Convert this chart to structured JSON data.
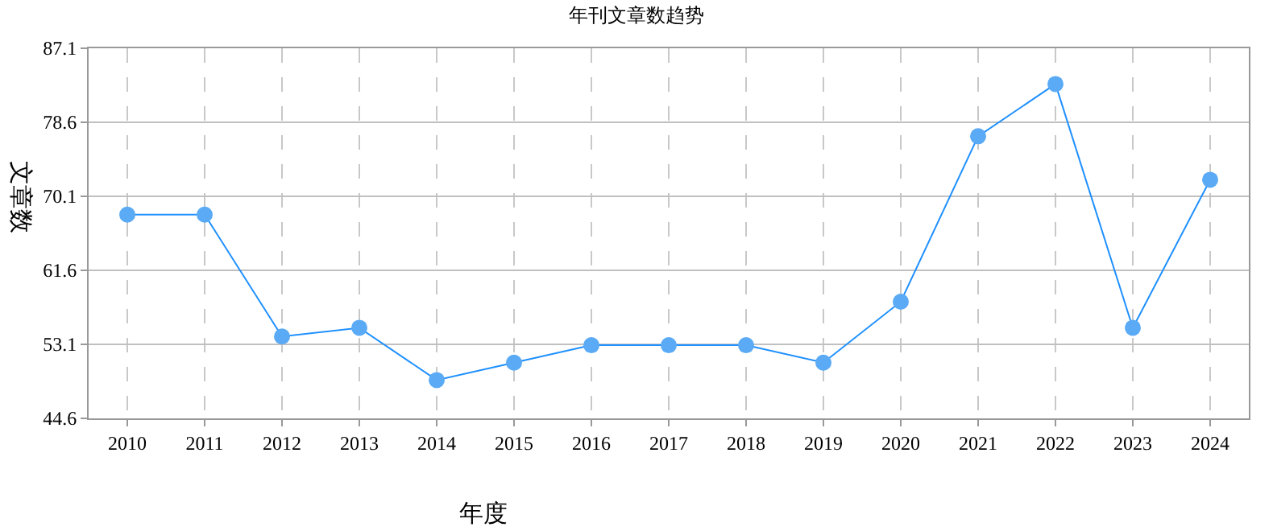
{
  "chart_data": {
    "type": "line",
    "title": "年刊文章数趋势",
    "xlabel": "年度",
    "ylabel": "文章数",
    "categories": [
      "2010",
      "2011",
      "2012",
      "2013",
      "2014",
      "2015",
      "2016",
      "2017",
      "2018",
      "2019",
      "2020",
      "2021",
      "2022",
      "2023",
      "2024"
    ],
    "series": [
      {
        "color": "#1e90ff",
        "values": [
          68,
          68,
          54,
          55,
          49,
          51,
          53,
          53,
          53,
          51,
          58,
          77,
          83,
          55,
          72
        ]
      }
    ],
    "ylim": [
      44.6,
      87.1
    ],
    "yticks": [
      44.6,
      53.1,
      61.6,
      70.1,
      78.6,
      87.1
    ],
    "grid": true,
    "marker": "circle",
    "line_style": "solid",
    "legend": false
  }
}
